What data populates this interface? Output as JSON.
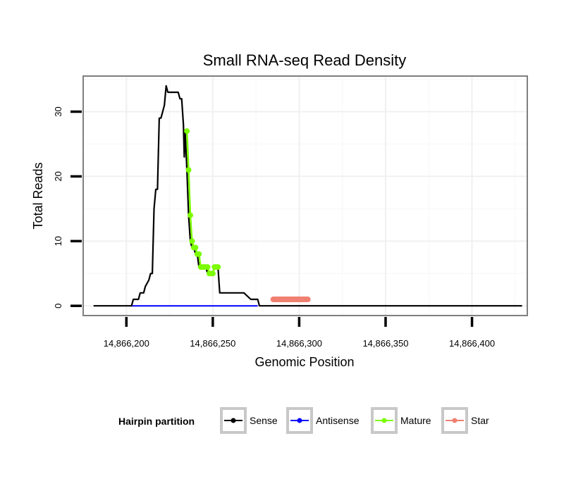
{
  "chart_data": {
    "type": "line",
    "title": "Small RNA-seq Read Density",
    "xlabel": "Genomic Position",
    "ylabel": "Total Reads",
    "xlim": [
      14866175,
      14866432
    ],
    "ylim": [
      -1.5,
      35.5
    ],
    "x_ticks": [
      14866200,
      14866250,
      14866300,
      14866350,
      14866400
    ],
    "x_tick_labels": [
      "14,866,200",
      "14,866,250",
      "14,866,300",
      "14,866,350",
      "14,866,400"
    ],
    "y_ticks": [
      0,
      10,
      20,
      30
    ],
    "y_tick_labels": [
      "0",
      "10",
      "20",
      "30"
    ],
    "grid": true,
    "legend": {
      "title": "Hairpin partition",
      "position": "bottom",
      "entries": [
        "Sense",
        "Antisense",
        "Mature",
        "Star"
      ]
    },
    "colors": {
      "Sense": "#000000",
      "Antisense": "#0000ff",
      "Mature": "#7cfc00",
      "Star": "#f08070"
    },
    "series": [
      {
        "name": "Sense",
        "style": "line",
        "x": [
          14866181,
          14866203,
          14866204,
          14866207,
          14866208,
          14866210,
          14866211,
          14866213,
          14866214,
          14866215,
          14866216,
          14866217,
          14866218,
          14866219,
          14866220,
          14866221,
          14866222,
          14866223,
          14866224,
          14866225,
          14866226,
          14866230,
          14866231,
          14866232,
          14866233,
          14866233.5,
          14866234,
          14866235,
          14866236,
          14866237,
          14866238,
          14866239,
          14866240,
          14866241,
          14866242,
          14866243,
          14866244,
          14866245,
          14866246,
          14866247,
          14866248,
          14866249,
          14866250,
          14866251,
          14866252,
          14866253,
          14866254,
          14866262,
          14866268,
          14866272,
          14866276,
          14866277,
          14866284,
          14866306,
          14866329,
          14866352,
          14866375,
          14866398,
          14866429
        ],
        "y": [
          0,
          0,
          1,
          1,
          2,
          2,
          3,
          4,
          5,
          5,
          15,
          18,
          18,
          29,
          29,
          30,
          31,
          34,
          33,
          33,
          33,
          33,
          32,
          32,
          28,
          23,
          27,
          21,
          14,
          10,
          9,
          9,
          8,
          8,
          6,
          6,
          6,
          6,
          6,
          5,
          5,
          5,
          5,
          6,
          6,
          6,
          2,
          2,
          2,
          1,
          1,
          0,
          0,
          0,
          0,
          0,
          0,
          0,
          0
        ]
      },
      {
        "name": "Antisense",
        "style": "line",
        "x": [
          14866203,
          14866245,
          14866276
        ],
        "y": [
          0,
          0,
          0
        ]
      },
      {
        "name": "Mature",
        "style": "points",
        "x": [
          14866235,
          14866236,
          14866237,
          14866238,
          14866239,
          14866240,
          14866241,
          14866242,
          14866243,
          14866244,
          14866245,
          14866246,
          14866247,
          14866248,
          14866249,
          14866250,
          14866251,
          14866252,
          14866253
        ],
        "y": [
          27,
          21,
          14,
          10,
          9,
          9,
          8,
          8,
          6,
          6,
          6,
          6,
          6,
          5,
          5,
          5,
          6,
          6,
          6
        ]
      },
      {
        "name": "Star",
        "style": "band",
        "x": [
          14866285,
          14866305
        ],
        "y": [
          1,
          1
        ]
      }
    ]
  }
}
